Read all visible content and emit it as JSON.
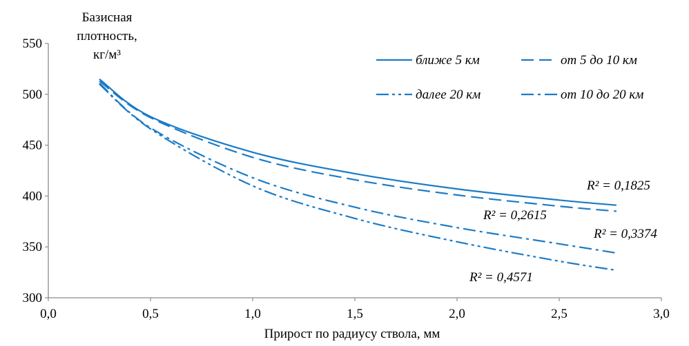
{
  "chart_data": {
    "type": "line",
    "title": "",
    "ylabel_lines": [
      "Базисная",
      "плотность,",
      "кг/м³"
    ],
    "xlabel": "Прирост по радиусу ствола, мм",
    "xlim": [
      0,
      3
    ],
    "ylim": [
      300,
      550
    ],
    "x_ticks": [
      "0,0",
      "0,5",
      "1,0",
      "1,5",
      "2,0",
      "2,5",
      "3,0"
    ],
    "y_ticks": [
      "300",
      "350",
      "400",
      "450",
      "500",
      "550"
    ],
    "grid": false,
    "legend_position": "top-right",
    "line_color": "#1a7bc6",
    "series": [
      {
        "name": "ближе 5 км",
        "dash": "solid",
        "r2": "R² = 0,1825",
        "x": [
          0.25,
          0.5,
          1.0,
          1.5,
          2.0,
          2.5,
          2.78
        ],
        "y": [
          515,
          478,
          443,
          422,
          407,
          396,
          391
        ]
      },
      {
        "name": "от 5 до 10 км",
        "dash": "dash",
        "r2": "R² = 0,2615",
        "x": [
          0.25,
          0.5,
          1.0,
          1.5,
          2.0,
          2.5,
          2.78
        ],
        "y": [
          513,
          477,
          438,
          416,
          401,
          390,
          385
        ]
      },
      {
        "name": "далее 20 км",
        "dash": "dashdotdot",
        "r2": "R² = 0,4571",
        "x": [
          0.25,
          0.5,
          1.0,
          1.5,
          2.0,
          2.5,
          2.78
        ],
        "y": [
          510,
          466,
          410,
          378,
          355,
          336,
          327
        ]
      },
      {
        "name": "от 10 до 20 км",
        "dash": "dashdot",
        "r2": "R² = 0,3374",
        "x": [
          0.25,
          0.5,
          1.0,
          1.5,
          2.0,
          2.5,
          2.78
        ],
        "y": [
          511,
          467,
          418,
          389,
          369,
          353,
          344
        ]
      }
    ]
  }
}
